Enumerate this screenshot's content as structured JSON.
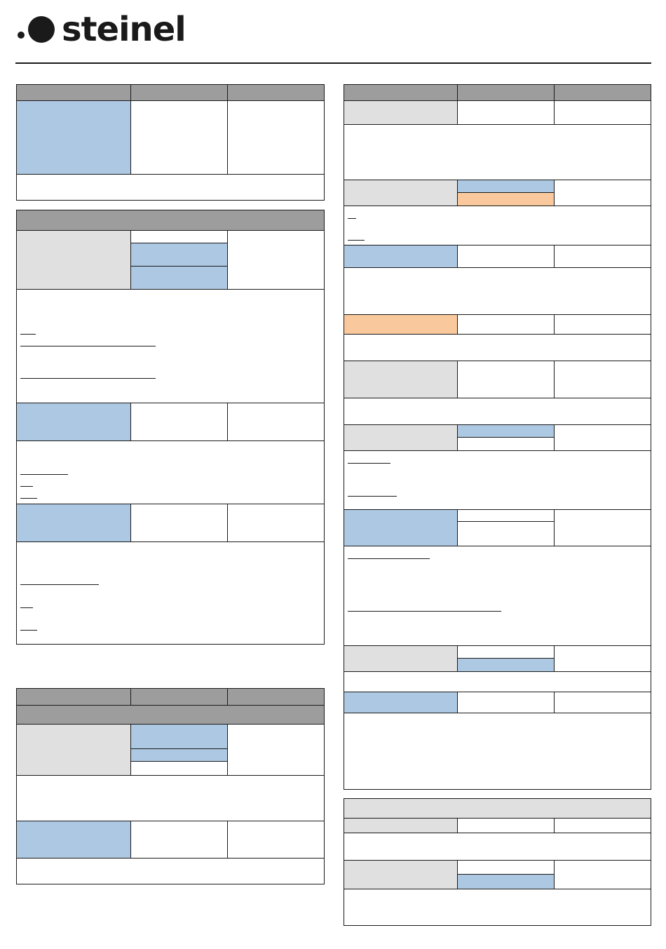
{
  "brand": {
    "name": "steinel",
    "colors": {
      "header_gray": "#9d9d9d",
      "blue_fill": "#adc8e2",
      "light_gray_fill": "#e0e0e0",
      "peach_fill": "#f9c89c",
      "line": "#1a1a1a"
    }
  },
  "icons": {
    "logo": "steinel-dot-logo-icon"
  }
}
